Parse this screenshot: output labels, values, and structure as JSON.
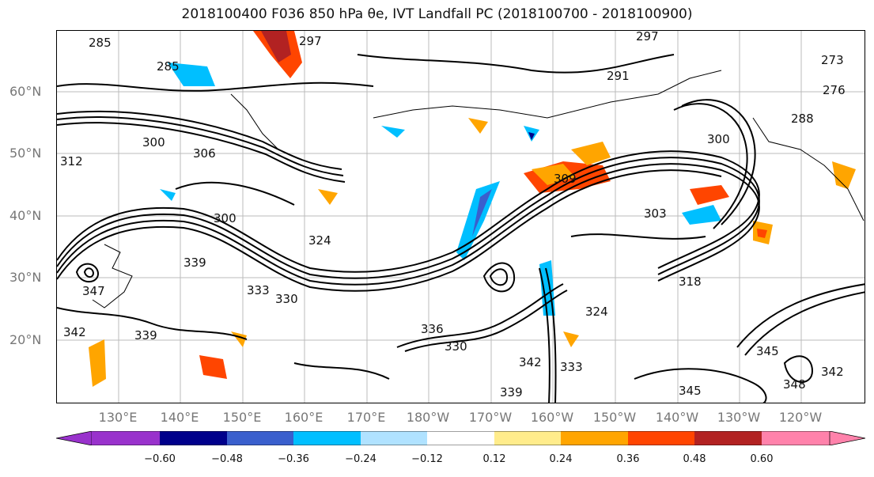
{
  "title": "2018100400 F036 850 hPa θe, IVT Landfall PC (2018100700 - 2018100900)",
  "lat_labels": [
    "60°N",
    "50°N",
    "40°N",
    "30°N",
    "20°N"
  ],
  "lon_labels": [
    "130°E",
    "140°E",
    "150°E",
    "160°E",
    "170°E",
    "180°W",
    "170°W",
    "160°W",
    "150°W",
    "140°W",
    "130°W",
    "120°W"
  ],
  "contour_labels": [
    "285",
    "285",
    "297",
    "300",
    "306",
    "300",
    "339",
    "347",
    "342",
    "339",
    "333",
    "330",
    "324",
    "318",
    "300",
    "297",
    "291",
    "273",
    "276",
    "288",
    "342",
    "345",
    "348",
    "345",
    "333",
    "339",
    "336",
    "330",
    "324",
    "312",
    "309",
    "303",
    "342"
  ],
  "colorbar": {
    "ticks": [
      "−0.60",
      "−0.48",
      "−0.36",
      "−0.24",
      "−0.12",
      "0.12",
      "0.24",
      "0.36",
      "0.48",
      "0.60"
    ],
    "colors": [
      "#9932cc",
      "#00008b",
      "#3a5fcd",
      "#00bfff",
      "#b0e2ff",
      "#ffffff",
      "#ffec8b",
      "#ffa500",
      "#ff4500",
      "#b22222",
      "#ff82ab"
    ]
  }
}
